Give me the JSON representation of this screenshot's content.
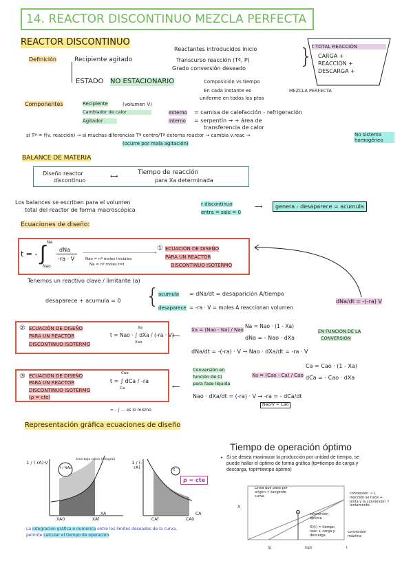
{
  "title": "14. REACTOR DISCONTINUO MEZCLA PERFECTA",
  "s1": {
    "heading": "REACTOR DISCONTINUO",
    "definicion": "Definición",
    "recipiente": "Recipiente agitado",
    "branches": [
      "Reactantes introducidos inicio",
      "Transcurso reacción (Tª, P)",
      "Grado conversión deseado"
    ],
    "total_box": {
      "title": "t TOTAL REACCIÓN",
      "items": [
        "CARGA +",
        "REACCIÓN +",
        "DESCARGA +"
      ]
    },
    "estado": "ESTADO",
    "no_est": "NO ESTACIONARIO",
    "estado_items": [
      "Composición vs tiempo",
      "En cada instante es",
      "uniforme en todos los ptos"
    ],
    "mezcla": "MEZCLA PERFECTA",
    "componentes": "Componentes",
    "comp": [
      "Recipiente",
      "(volumen V)",
      "Cambiador de calor",
      "Agitador"
    ],
    "externo": "externo",
    "externo_txt": "= camisa de calefacción - refrigeración",
    "interno": "interno",
    "interno_txt": "= serpentín → + área de",
    "interno_txt2": "transferencia de calor",
    "nota": "si Tª = f(v. reacción) → si muchas diferencias Tª centro/Tª externa reactor → cambia v.reac →",
    "nota_hl": "No sistema homogéneo",
    "nota2": "(ocurre por mala agitación)"
  },
  "s2": {
    "heading": "BALANCE DE MATERIA",
    "box_left": [
      "Diseño reactor",
      "discontinuo"
    ],
    "box_right": [
      "Tiempo de reacción",
      "para Xa determinada"
    ],
    "line1": [
      "Los balances se escriben para el volumen",
      "total del reactor de forma macroscópica"
    ],
    "r_disc": "r discontinuo",
    "entra_sale": "entra = sale = 0",
    "balance": "genera - desaparece = acumula",
    "ecuaciones": "Ecuaciones de diseño:",
    "eq1": {
      "lhs": "t = -",
      "upper": "Na",
      "lower": "Nao",
      "num": "dNa",
      "den": "-ra · V",
      "notes": [
        "Nao = nº moles iniciales",
        "Na = nº moles t=t"
      ],
      "num_label": "①",
      "label": [
        "ECUACIÓN DE DISEÑO",
        "PARA UN REACTOR",
        "DISCONTINUO ISOTERMO"
      ]
    },
    "tenemos": "Tenemos un reactivo clave / limitante (a)",
    "desap": "desaparece + acumula = 0",
    "acumula": "acumula",
    "acum_eq": "= dNa/dt = desaparición A/tiempo",
    "desaparece": "desaparece",
    "desap_eq": "= -ra · V = moles A reaccionan volumen",
    "result": "dNa/dt = -(-ra) V",
    "eq2": {
      "num_label": "②",
      "label": [
        "ECUACIÓN DE DISEÑO",
        "PARA UN REACTOR",
        "DISCONTINUO ISOTERMO"
      ],
      "formula": "t = Nao · ∫ dXa / (-ra · V)",
      "upper": "Xa",
      "lower": "Xao"
    },
    "xa_def": "Xa = (Nao - Na) / Nao",
    "na1": "Na = Nao · (1 - Xa)",
    "na2": "dNa = - Nao · dXa",
    "en_funcion": [
      "EN FUNCIÓN DE LA",
      "CONVERSIÓN"
    ],
    "deriv1": "dNa/dt = -(-ra) · V  →  Nao · dXa/dt = -ra · V",
    "eq3": {
      "num_label": "③",
      "label": [
        "ECUACIÓN DE DISEÑO",
        "PARA UN REACTOR",
        "DISCONTINUO ISOTERMO",
        "(ρ = cte)"
      ],
      "formula": "t = ∫ dCa / -ra",
      "upper": "Cao",
      "lower": "Ca",
      "note": "= - ∫ ... es lo mismo"
    },
    "conv_label": [
      "Conversión en",
      "función de Ci",
      "para fase líquida"
    ],
    "xa_c": "Xa = (Cao - Ca) / Cao",
    "ca1": "Ca = Cao · (1 - Xa)",
    "ca2": "dCa = - Cao · dXa",
    "deriv2": "Nao · dXa/dt = (-ra) · V  →  -ra = - dCa/dt",
    "nao_v": "Nao/V = Cao"
  },
  "s3": {
    "heading": "Representación gráfica ecuaciones de diseño",
    "g1": {
      "ylabel": "1 / (-rA)·V",
      "circle": "t / NAo",
      "note": "área bajo curva (integral)",
      "xlabel": "XA",
      "x1": "XA0",
      "x2": "XAf"
    },
    "g2": {
      "ylabel": "1 / (-rA)",
      "circle": "t",
      "xlabel": "CA",
      "x1": "CAf",
      "x2": "CA0",
      "rho": "ρ = cte"
    },
    "caption": [
      "La ",
      "integración gráfica o numérica",
      " entre los límites deseados de la curva,",
      "permite ",
      "calcular el tiempo de operación",
      "."
    ],
    "opt": {
      "title": "Tiempo de operación óptimo",
      "bullet": "Si se desea maximizar la producción por unidad de tiempo, se puede hallar el óptimo de forma gráfica (tp=tiempo de carga y descarga, topt=tiempo óptimo)",
      "ylabel": "X",
      "t0": "tp",
      "topt": "topt",
      "t": "t",
      "notes": [
        "Línea que pasa por origen + tangente curva",
        "conversión óptima",
        "X/(t) = tiempo reac + carga y descarga",
        "conversión → t, reacción se hace + lenta y la conversión ↑ lentamente",
        "conversión máxima"
      ]
    }
  }
}
